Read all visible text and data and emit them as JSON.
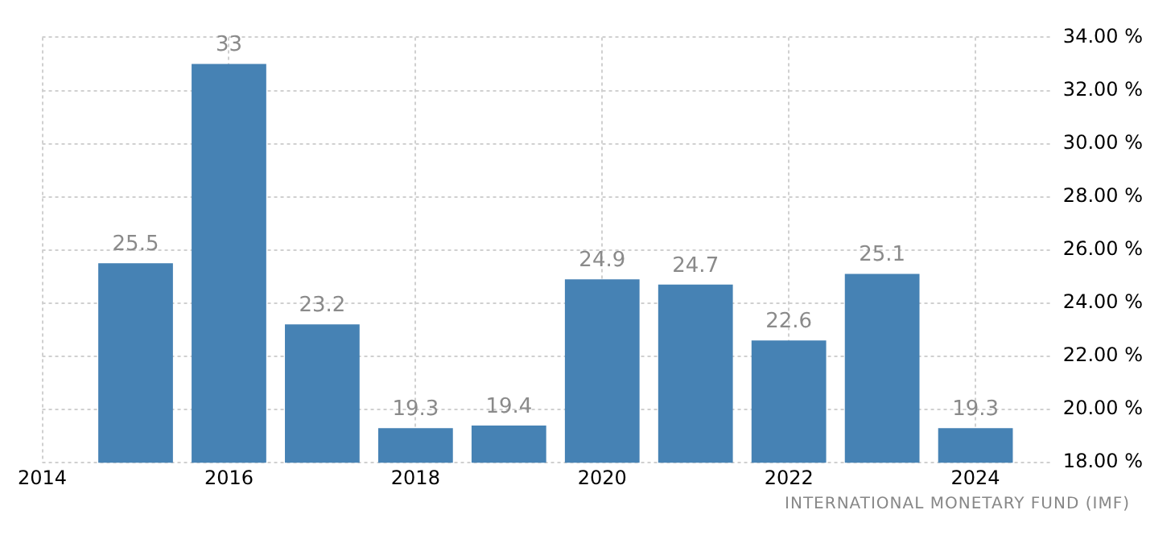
{
  "chart_data": {
    "type": "bar",
    "x": [
      2015,
      2016,
      2017,
      2018,
      2019,
      2020,
      2021,
      2022,
      2023,
      2024
    ],
    "values": [
      25.5,
      33,
      23.2,
      19.3,
      19.4,
      24.9,
      24.7,
      22.6,
      25.1,
      19.3
    ],
    "color": "#4682b4",
    "xlim": [
      2014,
      2024.8
    ],
    "xticks": [
      2014,
      2016,
      2018,
      2020,
      2022,
      2024
    ],
    "ylim": [
      18,
      34
    ],
    "yticks": [
      {
        "value": 18,
        "label": "18.00 %"
      },
      {
        "value": 20,
        "label": "20.00 %"
      },
      {
        "value": 22,
        "label": "22.00 %"
      },
      {
        "value": 24,
        "label": "24.00 %"
      },
      {
        "value": 26,
        "label": "26.00 %"
      },
      {
        "value": 28,
        "label": "28.00 %"
      },
      {
        "value": 30,
        "label": "30.00 %"
      },
      {
        "value": 32,
        "label": "32.00 %"
      },
      {
        "value": 34,
        "label": "34.00 %"
      }
    ],
    "grid": true,
    "data_labels": true,
    "annotations": [
      "INTERNATIONAL MONETARY FUND (IMF)"
    ]
  }
}
